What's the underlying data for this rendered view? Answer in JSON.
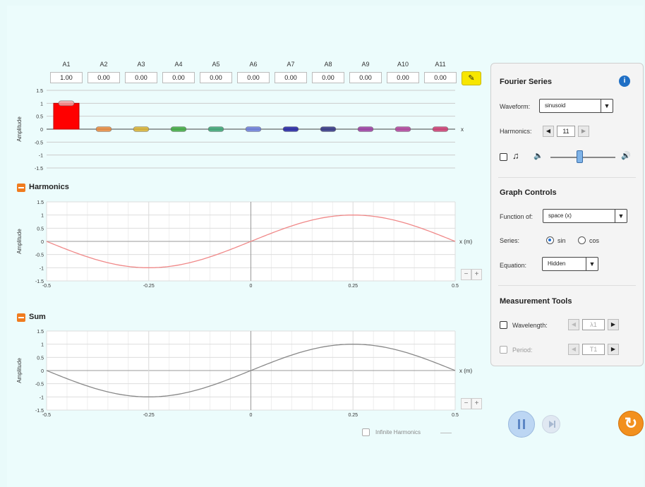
{
  "amplitudes": {
    "labels": [
      "A1",
      "A2",
      "A3",
      "A4",
      "A5",
      "A6",
      "A7",
      "A8",
      "A9",
      "A10",
      "A11"
    ],
    "values": [
      "1.00",
      "0.00",
      "0.00",
      "0.00",
      "0.00",
      "0.00",
      "0.00",
      "0.00",
      "0.00",
      "0.00",
      "0.00"
    ],
    "slider_colors": [
      "#ff0000",
      "#e8883c",
      "#d8b030",
      "#3ea83e",
      "#3aa272",
      "#6a7ad8",
      "#2020a0",
      "#303080",
      "#9a3aa0",
      "#b0409a",
      "#cc3a70"
    ],
    "ylabel": "Amplitude",
    "yticks": [
      "1.5",
      "1",
      "0.5",
      "0",
      "-0.5",
      "-1",
      "-1.5"
    ],
    "x_axis": "x"
  },
  "harmonics": {
    "title": "Harmonics",
    "ylabel": "Amplitude",
    "xlabel": "x (m)",
    "yticks": [
      "1.5",
      "1",
      "0.5",
      "0",
      "-0.5",
      "-1",
      "-1.5"
    ],
    "xticks": [
      "-0.5",
      "-0.25",
      "0",
      "0.25",
      "0.5"
    ],
    "color": "#f08888"
  },
  "sum": {
    "title": "Sum",
    "ylabel": "Amplitude",
    "xlabel": "x (m)",
    "yticks": [
      "1.5",
      "1",
      "0.5",
      "0",
      "-0.5",
      "-1",
      "-1.5"
    ],
    "xticks": [
      "-0.5",
      "-0.25",
      "0",
      "0.25",
      "0.5"
    ],
    "color": "#888888"
  },
  "chart_data": {
    "type": "line",
    "x_range": [
      -0.5,
      0.5
    ],
    "ylim": [
      -1.5,
      1.5
    ],
    "series": [
      {
        "name": "Harmonics",
        "function": "sin",
        "amplitude": 1,
        "wavelength": 1
      },
      {
        "name": "Sum",
        "function": "sin",
        "amplitude": 1,
        "wavelength": 1
      }
    ]
  },
  "zoom": {
    "minus": "−",
    "plus": "+"
  },
  "infinite_harmonics_label": "Infinite Harmonics",
  "panel": {
    "fourier_series": "Fourier Series",
    "waveform_label": "Waveform:",
    "waveform_value": "sinusoid",
    "harmonics_label": "Harmonics:",
    "harmonics_value": "11",
    "graph_controls": "Graph Controls",
    "function_of_label": "Function of:",
    "function_of_value": "space (x)",
    "series_label": "Series:",
    "series_sin": "sin",
    "series_cos": "cos",
    "equation_label": "Equation:",
    "equation_value": "Hidden",
    "measurement_tools": "Measurement Tools",
    "wavelength_label": "Wavelength:",
    "wavelength_value": "λ1",
    "period_label": "Period:",
    "period_value": "T1",
    "volume_level": 0.45
  },
  "icons": {
    "pencil": "pencil-icon",
    "info": "info-icon",
    "music": "music-note-icon",
    "vol_low": "volume-low-icon",
    "vol_high": "volume-high-icon",
    "reset": "reset-icon"
  }
}
